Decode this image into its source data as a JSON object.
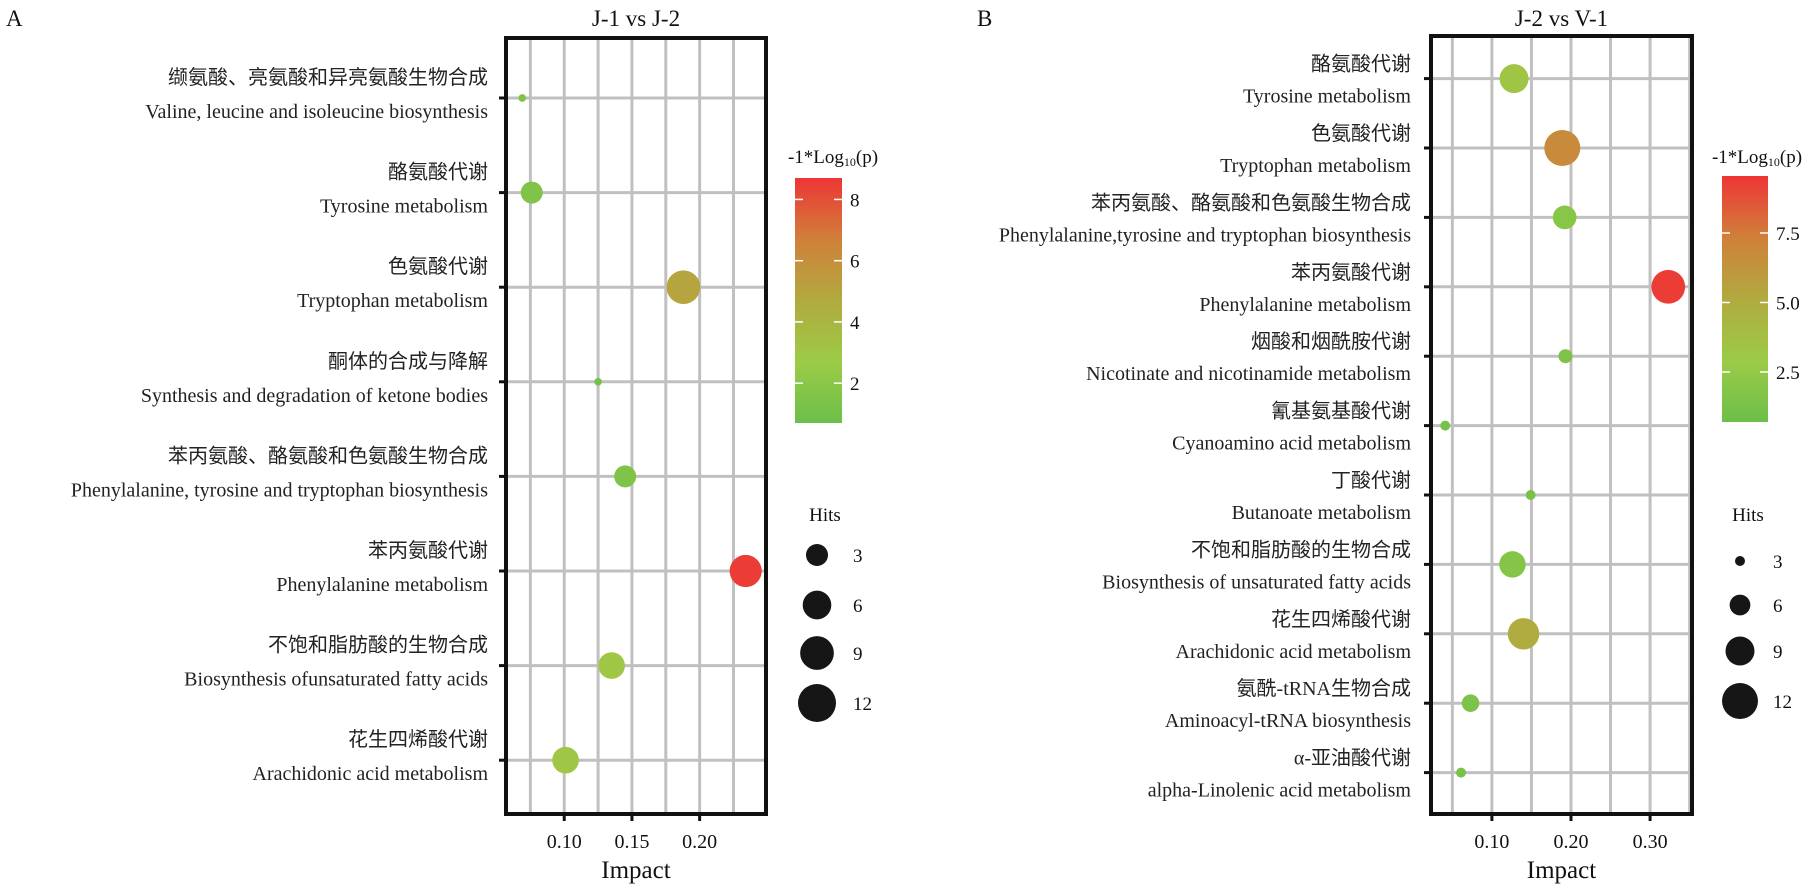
{
  "chart_data": [
    {
      "type": "scatter",
      "panel_label": "A",
      "title": "J-1 vs J-2",
      "xlabel": "Impact",
      "xlim": [
        0.057,
        0.249
      ],
      "xticks": [
        0.1,
        0.15,
        0.2
      ],
      "xtick_labels": [
        "0.10",
        "0.15",
        "0.20"
      ],
      "grid": true,
      "color_legend": {
        "title_prefix": "-1*Log",
        "title_sub": "10",
        "title_suffix": "(p)",
        "range": [
          0.7,
          8.7
        ],
        "ticks": [
          2,
          4,
          6,
          8
        ],
        "tick_labels": [
          "2",
          "4",
          "6",
          "8"
        ],
        "colors": [
          "#6cbf4a",
          "#9ccb46",
          "#b1aa3f",
          "#d0803a",
          "#ee3535"
        ]
      },
      "size_legend": {
        "title": "Hits",
        "values": [
          3,
          6,
          9,
          12
        ],
        "labels": [
          "3",
          "6",
          "9",
          "12"
        ]
      },
      "pathways": [
        {
          "cn": "缬氨酸、亮氨酸和异亮氨酸生物合成",
          "en": "Valine, leucine and isoleucine biosynthesis",
          "impact": 0.069,
          "neg_log10_p": 1.5,
          "hits": 1
        },
        {
          "cn": "酪氨酸代谢",
          "en": "Tyrosine metabolism",
          "impact": 0.076,
          "neg_log10_p": 1.5,
          "hits": 3
        },
        {
          "cn": "色氨酸代谢",
          "en": "Tryptophan metabolism",
          "impact": 0.188,
          "neg_log10_p": 5.0,
          "hits": 9
        },
        {
          "cn": "酮体的合成与降解",
          "en": "Synthesis and degradation of ketone bodies",
          "impact": 0.125,
          "neg_log10_p": 1.0,
          "hits": 1
        },
        {
          "cn": "苯丙氨酸、酪氨酸和色氨酸生物合成",
          "en": "Phenylalanine, tyrosine and tryptophan biosynthesis",
          "impact": 0.145,
          "neg_log10_p": 1.5,
          "hits": 3
        },
        {
          "cn": "苯丙氨酸代谢",
          "en": "Phenylalanine metabolism",
          "impact": 0.234,
          "neg_log10_p": 8.5,
          "hits": 8
        },
        {
          "cn": "不饱和脂肪酸的生物合成",
          "en": "Biosynthesis ofunsaturated fatty acids",
          "impact": 0.135,
          "neg_log10_p": 3.0,
          "hits": 5
        },
        {
          "cn": "花生四烯酸代谢",
          "en": "Arachidonic acid metabolism",
          "impact": 0.101,
          "neg_log10_p": 3.0,
          "hits": 5
        }
      ]
    },
    {
      "type": "scatter",
      "panel_label": "B",
      "title": "J-2 vs V-1",
      "xlabel": "Impact",
      "xlim": [
        0.023,
        0.353
      ],
      "xticks": [
        0.1,
        0.2,
        0.3
      ],
      "xtick_labels": [
        "0.10",
        "0.20",
        "0.30"
      ],
      "grid": true,
      "color_legend": {
        "title_prefix": "-1*Log",
        "title_sub": "10",
        "title_suffix": "(p)",
        "range": [
          0.7,
          9.55
        ],
        "ticks": [
          2.5,
          5.0,
          7.5
        ],
        "tick_labels": [
          "2.5",
          "5.0",
          "7.5"
        ],
        "colors": [
          "#6cbf4a",
          "#9ccb46",
          "#b1aa3f",
          "#d0803a",
          "#ee3535"
        ]
      },
      "size_legend": {
        "title": "Hits",
        "values": [
          3,
          6,
          9,
          12
        ],
        "labels": [
          "3",
          "6",
          "9",
          "12"
        ]
      },
      "pathways": [
        {
          "cn": "酪氨酸代谢",
          "en": "Tyrosine metabolism",
          "impact": 0.128,
          "neg_log10_p": 3.3,
          "hits": 9
        },
        {
          "cn": "色氨酸代谢",
          "en": "Tryptophan metabolism",
          "impact": 0.189,
          "neg_log10_p": 6.8,
          "hits": 12
        },
        {
          "cn": "苯丙氨酸、酪氨酸和色氨酸生物合成",
          "en": "Phenylalanine,tyrosine and tryptophan biosynthesis",
          "impact": 0.192,
          "neg_log10_p": 2.0,
          "hits": 7
        },
        {
          "cn": "苯丙氨酸代谢",
          "en": "Phenylalanine metabolism",
          "impact": 0.323,
          "neg_log10_p": 9.3,
          "hits": 11
        },
        {
          "cn": "烟酸和烟酰胺代谢",
          "en": "Nicotinate and nicotinamide metabolism",
          "impact": 0.193,
          "neg_log10_p": 1.5,
          "hits": 4
        },
        {
          "cn": "氰基氨基酸代谢",
          "en": "Cyanoamino acid metabolism",
          "impact": 0.041,
          "neg_log10_p": 1.2,
          "hits": 3
        },
        {
          "cn": "丁酸代谢",
          "en": "Butanoate metabolism",
          "impact": 0.149,
          "neg_log10_p": 1.2,
          "hits": 3
        },
        {
          "cn": "不饱和脂肪酸的生物合成",
          "en": "Biosynthesis of unsaturated fatty acids",
          "impact": 0.126,
          "neg_log10_p": 1.8,
          "hits": 8
        },
        {
          "cn": "花生四烯酸代谢",
          "en": "Arachidonic acid metabolism",
          "impact": 0.14,
          "neg_log10_p": 5.0,
          "hits": 10
        },
        {
          "cn": "氨酰-tRNA生物合成",
          "en": "Aminoacyl-tRNA biosynthesis",
          "impact": 0.073,
          "neg_log10_p": 1.5,
          "hits": 5
        },
        {
          "cn": "α-亚油酸代谢",
          "en": "alpha-Linolenic acid metabolism",
          "impact": 0.061,
          "neg_log10_p": 1.3,
          "hits": 3
        }
      ]
    }
  ]
}
